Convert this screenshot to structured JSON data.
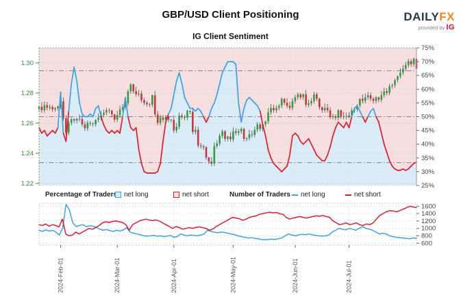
{
  "header": {
    "title": "GBP/USD Client Positioning",
    "subtitle": "IG Client Sentiment",
    "logo": {
      "brand_main": "DAILY",
      "brand_accent": "FX",
      "provided_by": "provided by",
      "provider": "IG"
    }
  },
  "legend": {
    "pct_group_label": "Percentage of Traders",
    "num_group_label": "Number of Traders",
    "net_long_label": "net long",
    "net_short_label": "net short"
  },
  "colors": {
    "net_long_blue": "#3aa0e8",
    "net_short_red": "#e11b2e",
    "candle_up_green": "#2f9e41",
    "candle_down_red": "#c43836",
    "wick_gray": "#3a3a3a",
    "long_fill_blue": "#d9ecf8",
    "short_fill_pink": "#f7dfe0",
    "price_axis_green": "#3d8b3d",
    "price_grid_green": "#b5d9b5",
    "pct_grid_gray": "#dcdcdc",
    "threshold_gray": "#808080",
    "axis_text_gray": "#444444",
    "date_text_gray": "#555555",
    "brand_navy": "#27394e",
    "brand_orange": "#f5831f",
    "brand_ig_red": "#e4062c"
  },
  "chart_data": [
    {
      "type": "candlestick",
      "title": "IG Client Sentiment",
      "price_axis_ticks": [
        "1.30",
        "1.28",
        "1.26",
        "1.24",
        "1.22"
      ],
      "pct_axis_ticks": [
        "75%",
        "70%",
        "65%",
        "60%",
        "55%",
        "50%",
        "45%",
        "40%",
        "35%",
        "30%",
        "25%"
      ],
      "pct_range": [
        25,
        75
      ],
      "threshold_lines_pct": [
        66.7,
        50,
        33.3
      ],
      "x_axis_labels": [
        "2024-Feb-01",
        "2024-Mar-01",
        "2024-Apr-01",
        "2024-May-01",
        "2024-Jun-01",
        "2024-Jul-01"
      ],
      "x_label_indices": [
        8,
        29,
        50,
        72,
        95,
        115
      ],
      "first_open": 1.2695,
      "closes": [
        1.271,
        1.2686,
        1.272,
        1.2702,
        1.2708,
        1.2692,
        1.27,
        1.2712,
        1.2746,
        1.2632,
        1.2538,
        1.2602,
        1.2626,
        1.2618,
        1.263,
        1.2628,
        1.2592,
        1.2566,
        1.2602,
        1.2598,
        1.2594,
        1.2622,
        1.2636,
        1.2656,
        1.267,
        1.2686,
        1.2682,
        1.2658,
        1.2624,
        1.2654,
        1.2692,
        1.2706,
        1.2732,
        1.2812,
        1.2858,
        1.2812,
        1.2792,
        1.2796,
        1.2752,
        1.2736,
        1.2726,
        1.2722,
        1.2786,
        1.2658,
        1.2602,
        1.2636,
        1.2624,
        1.2642,
        1.2624,
        1.2622,
        1.2552,
        1.2576,
        1.265,
        1.2642,
        1.2636,
        1.2682,
        1.2676,
        1.2542,
        1.2556,
        1.2452,
        1.2446,
        1.244,
        1.2372,
        1.2346,
        1.2332,
        1.2448,
        1.2466,
        1.2516,
        1.2546,
        1.2496,
        1.2512,
        1.2492,
        1.2546,
        1.2536,
        1.2546,
        1.2562,
        1.2496,
        1.2502,
        1.2526,
        1.2522,
        1.2556,
        1.2592,
        1.2562,
        1.2592,
        1.2612,
        1.2672,
        1.2702,
        1.2686,
        1.2702,
        1.2716,
        1.2762,
        1.2736,
        1.2716,
        1.2702,
        1.2746,
        1.2772,
        1.2792,
        1.2772,
        1.2792,
        1.2722,
        1.2732,
        1.2746,
        1.2792,
        1.2762,
        1.2706,
        1.2686,
        1.2702,
        1.2686,
        1.2642,
        1.2646,
        1.2636,
        1.2686,
        1.2646,
        1.2642,
        1.2646,
        1.2652,
        1.2686,
        1.2692,
        1.2718,
        1.2762,
        1.2748,
        1.2772,
        1.2786,
        1.2762,
        1.2748,
        1.2772,
        1.2756,
        1.2786,
        1.2812,
        1.2802,
        1.2846,
        1.2852,
        1.2886,
        1.2912,
        1.2936,
        1.2962,
        1.2986,
        1.3012,
        1.2992,
        1.3028,
        1.2962
      ],
      "net_long_pct": [
        46,
        44,
        45,
        43,
        44,
        45,
        44,
        46,
        59,
        44,
        41,
        52,
        62,
        68,
        63,
        55,
        51,
        50,
        50,
        51,
        50,
        53,
        54,
        50,
        47,
        45,
        44,
        45,
        44,
        45,
        44,
        50,
        57,
        50,
        46,
        45,
        46,
        38,
        33,
        30,
        29.5,
        29.5,
        29.5,
        29.5,
        30,
        33,
        41,
        48,
        51,
        53,
        58,
        63,
        66,
        62,
        57,
        55,
        53,
        53,
        52,
        53,
        52,
        50,
        48,
        50,
        53,
        55,
        58,
        62,
        66,
        68,
        70,
        70,
        70,
        69,
        55,
        48,
        53,
        56,
        57,
        56,
        55,
        54,
        52,
        47,
        43,
        38,
        35,
        33,
        32,
        31,
        30,
        31,
        32,
        36,
        43,
        44,
        43,
        41,
        40,
        41,
        42,
        40,
        38,
        36,
        35,
        34,
        34,
        36,
        39,
        43,
        46,
        48,
        47,
        46,
        48,
        46,
        50,
        53,
        54,
        52,
        50,
        48,
        50,
        52,
        53,
        50,
        48,
        44,
        40,
        37,
        34,
        32,
        31,
        30.5,
        30.5,
        31,
        30.5,
        31,
        32,
        33,
        33.5
      ]
    },
    {
      "type": "line",
      "count_axis_ticks": [
        "1600",
        "1400",
        "1200",
        "1000",
        "800",
        "600"
      ],
      "count_range": [
        550,
        1680
      ],
      "series": [
        {
          "name": "net long",
          "color_key": "net_long_blue",
          "values": [
            950,
            920,
            960,
            930,
            950,
            900,
            820,
            1000,
            1650,
            1500,
            1150,
            1050,
            1080,
            1100,
            1050,
            1070,
            1060,
            1030,
            980,
            950,
            970,
            940,
            920,
            950,
            930,
            960,
            1020,
            900,
            870,
            850,
            830,
            800,
            790,
            800,
            810,
            790,
            800,
            780,
            790,
            810,
            760,
            780,
            850,
            820,
            800,
            820,
            810,
            800,
            820,
            850,
            950,
            920,
            900,
            880,
            900,
            890,
            870,
            850,
            830,
            800,
            780,
            760,
            740,
            750,
            730,
            720,
            700,
            690,
            700,
            710,
            700,
            720,
            740,
            800,
            850,
            820,
            800,
            820,
            840,
            830,
            850,
            830,
            810,
            800,
            790,
            800,
            820,
            900,
            950,
            1000,
            980,
            960,
            1000,
            980,
            950,
            1000,
            1050,
            1000,
            980,
            950,
            900,
            850,
            870,
            850,
            800,
            780,
            760,
            750,
            740,
            730,
            720,
            740,
            730
          ]
        },
        {
          "name": "net short",
          "color_key": "net_short_red",
          "values": [
            1100,
            1080,
            1120,
            1060,
            1100,
            1080,
            1040,
            1250,
            850,
            800,
            820,
            900,
            850,
            900,
            950,
            1000,
            980,
            1020,
            1080,
            1150,
            1180,
            1160,
            1190,
            1200,
            1180,
            1160,
            1100,
            950,
            1100,
            1150,
            1200,
            1230,
            1250,
            1230,
            1210,
            1230,
            1200,
            1150,
            1100,
            1050,
            1000,
            1050,
            1020,
            980,
            1000,
            1020,
            1000,
            1030,
            1040,
            1020,
            1000,
            950,
            980,
            1050,
            1100,
            1150,
            1200,
            1250,
            1300,
            1280,
            1260,
            1220,
            1250,
            1300,
            1320,
            1340,
            1380,
            1400,
            1420,
            1440,
            1420,
            1430,
            1400,
            1380,
            1300,
            1250,
            1280,
            1300,
            1320,
            1300,
            1280,
            1300,
            1320,
            1340,
            1330,
            1350,
            1320,
            1300,
            1200,
            1150,
            1100,
            1120,
            1150,
            1100,
            1120,
            1150,
            1100,
            1080,
            1120,
            1100,
            1150,
            1250,
            1350,
            1400,
            1450,
            1480,
            1470,
            1450,
            1480,
            1520,
            1560,
            1600,
            1580,
            1560
          ]
        }
      ]
    }
  ]
}
